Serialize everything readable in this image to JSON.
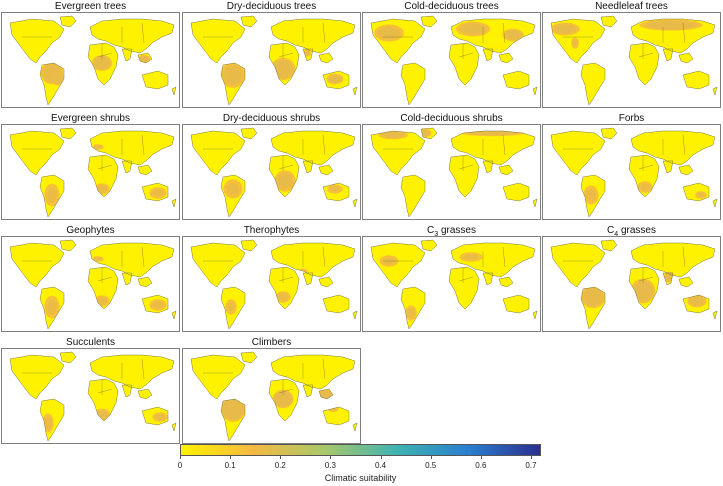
{
  "panels": [
    {
      "label": "Evergreen trees",
      "pattern": "tropical-wet"
    },
    {
      "label": "Dry-deciduous trees",
      "pattern": "tropical-dry"
    },
    {
      "label": "Cold-deciduous trees",
      "pattern": "temperate"
    },
    {
      "label": "Needleleaf trees",
      "pattern": "boreal"
    },
    {
      "label": "Evergreen shrubs",
      "pattern": "mediterranean"
    },
    {
      "label": "Dry-deciduous shrubs",
      "pattern": "savanna"
    },
    {
      "label": "Cold-deciduous shrubs",
      "pattern": "tundra"
    },
    {
      "label": "Forbs",
      "pattern": "mild"
    },
    {
      "label": "Geophytes",
      "pattern": "mediterranean"
    },
    {
      "label": "Therophytes",
      "pattern": "arid"
    },
    {
      "label_prefix": "C",
      "label_sub": "3",
      "label_suffix": " grasses",
      "pattern": "temperate-mild"
    },
    {
      "label_prefix": "C",
      "label_sub": "4",
      "label_suffix": " grasses",
      "pattern": "savanna-strong"
    },
    {
      "label": "Succulents",
      "pattern": "arid-south"
    },
    {
      "label": "Climbers",
      "pattern": "tropical-wet-strong"
    }
  ],
  "colorbar": {
    "label": "Climatic suitability",
    "ticks": [
      "0",
      "0.1",
      "0.2",
      "0.3",
      "0.4",
      "0.5",
      "0.6",
      "0.7"
    ],
    "min": 0,
    "max": 0.72,
    "colors": [
      "#fff200",
      "#f5b942",
      "#a8c86a",
      "#3fb3b0",
      "#2a7fcf",
      "#2b2f8f"
    ]
  },
  "colors": {
    "ocean": "#ffffff",
    "border": "#5a5a2a",
    "frame": "#808080"
  }
}
